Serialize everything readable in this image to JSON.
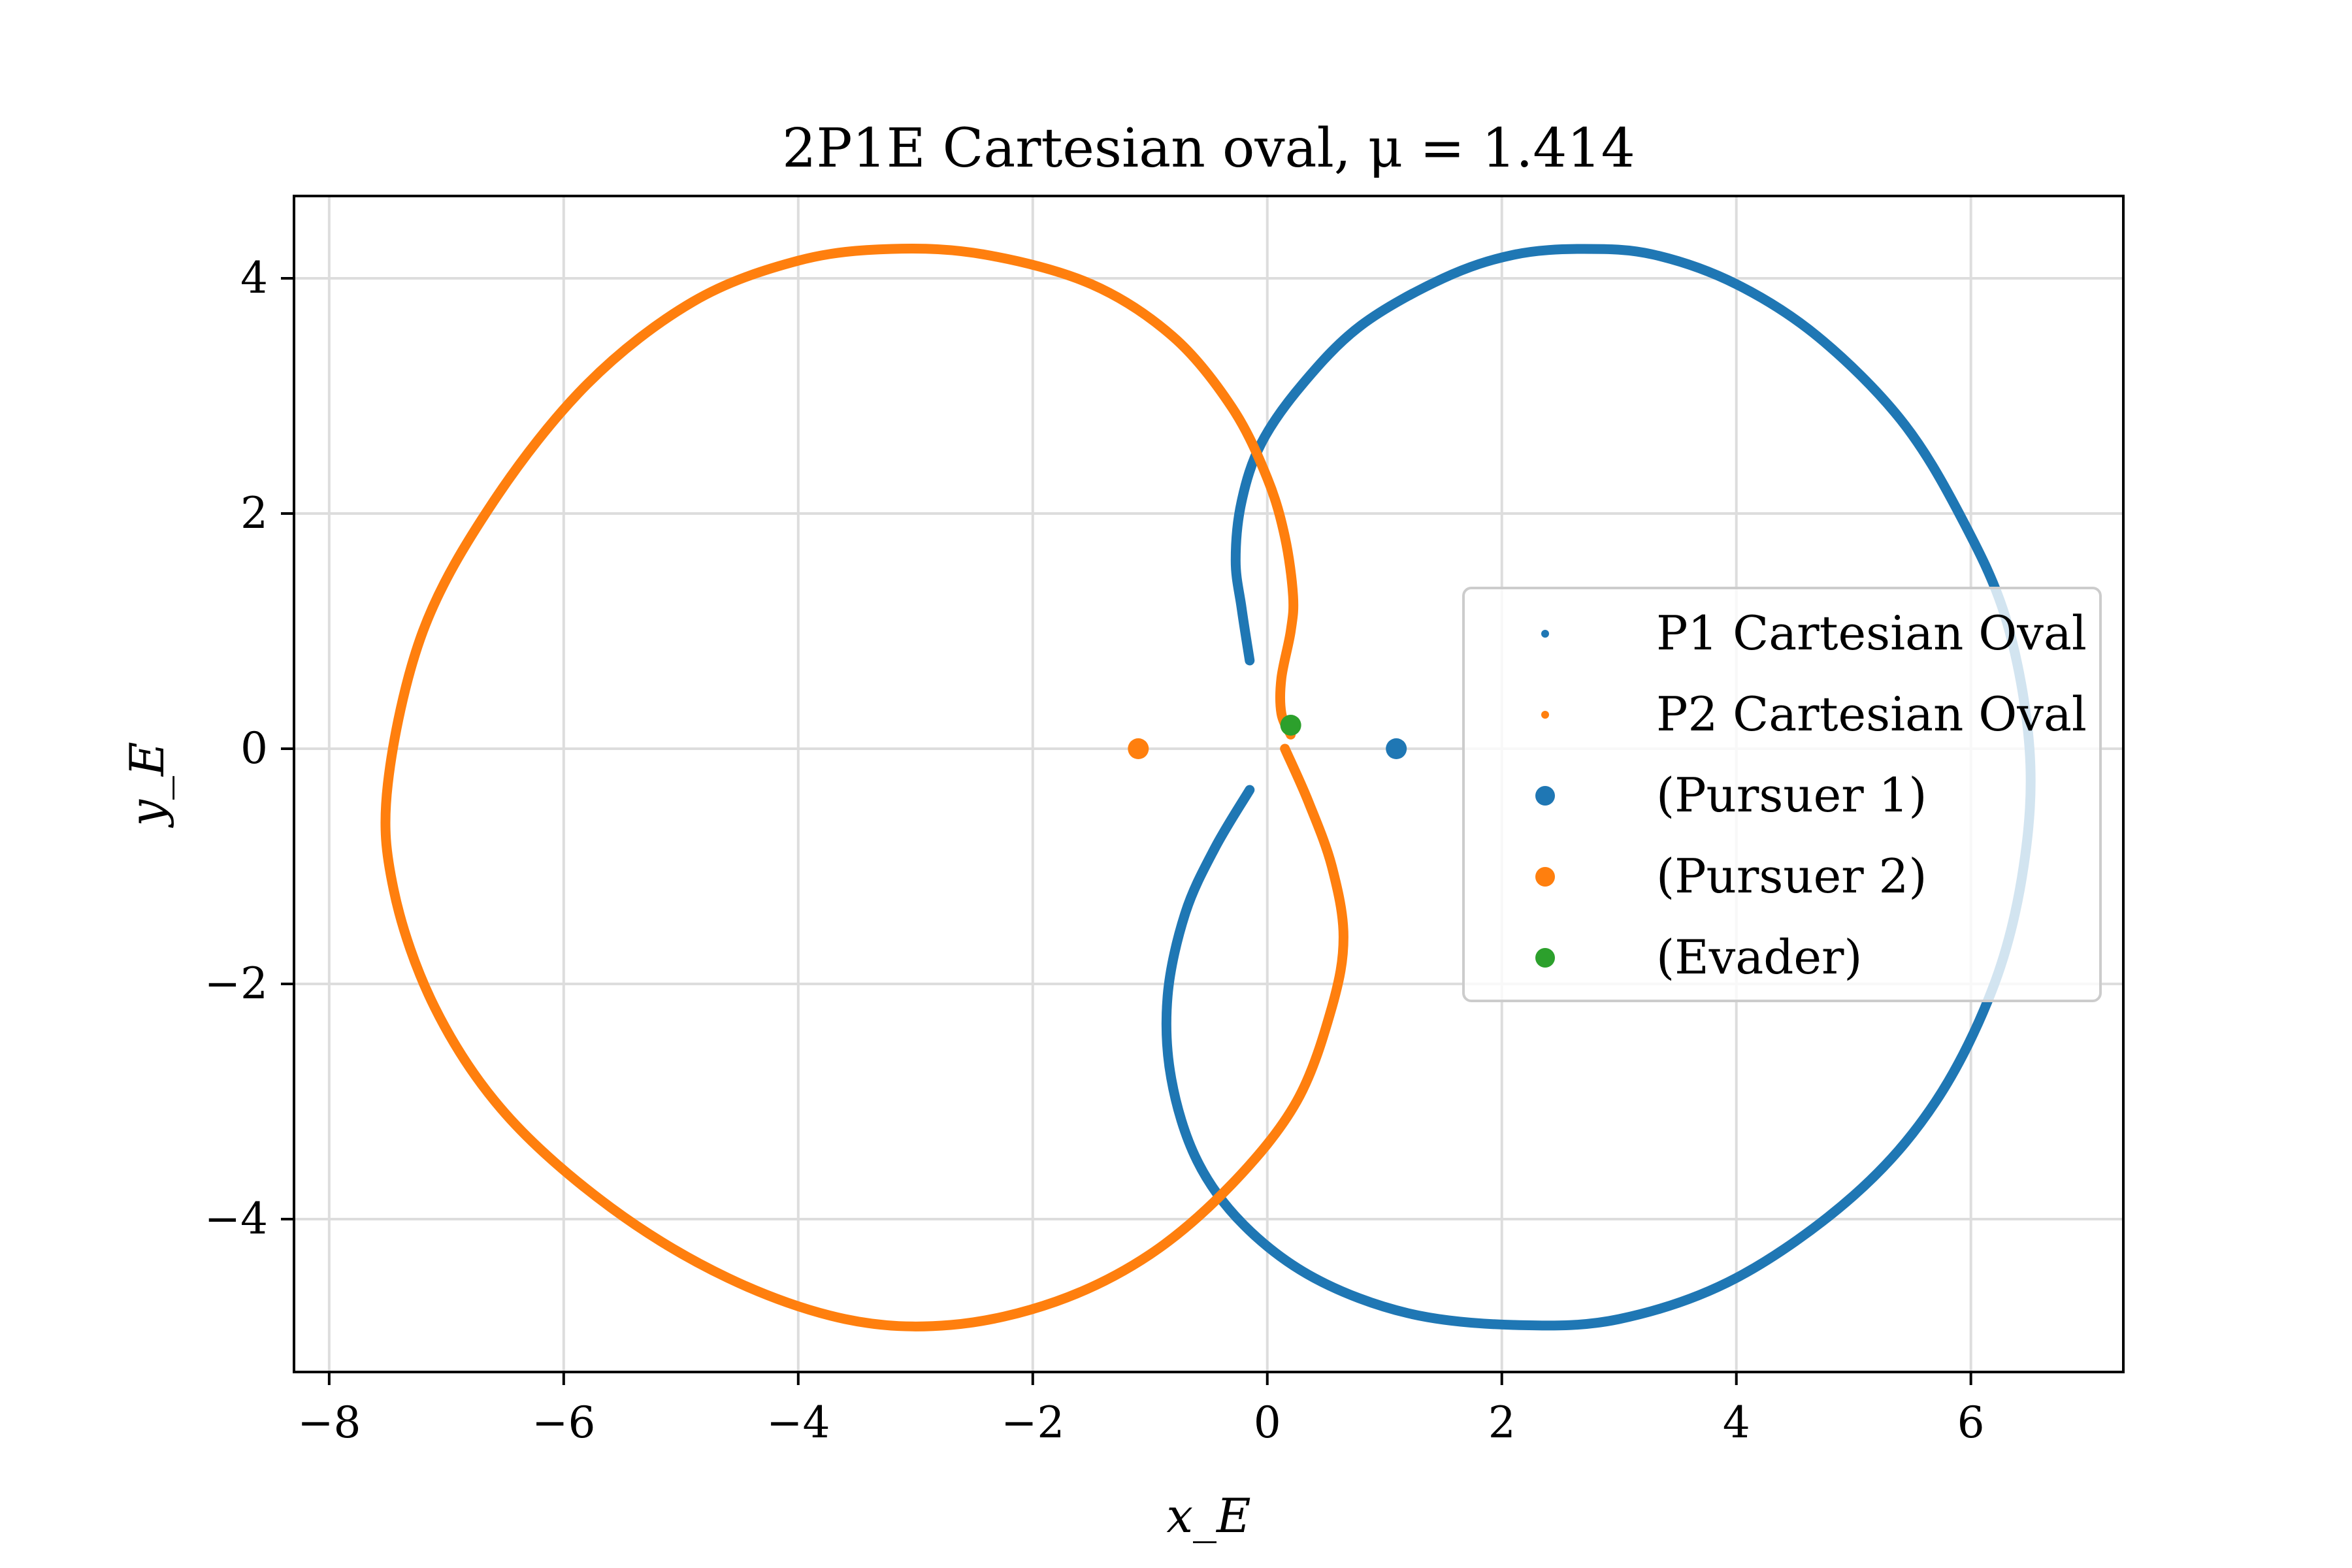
{
  "chart_data": {
    "type": "scatter",
    "title": "2P1E Cartesian oval, μ = 1.414",
    "xlabel": "x_E",
    "ylabel": "y_E",
    "xlim": [
      -8.3,
      7.3
    ],
    "ylim": [
      -5.3,
      4.7
    ],
    "grid": true,
    "legend_position": "right",
    "x_ticks": [
      -8,
      -6,
      -4,
      -2,
      0,
      2,
      4,
      6
    ],
    "y_ticks": [
      -4,
      -2,
      0,
      2,
      4
    ],
    "colors": {
      "p1": "#1f77b4",
      "p2": "#ff7f0e",
      "evader": "#2ca02c",
      "grid": "#dddddd"
    },
    "mu": 1.414,
    "series": [
      {
        "name": "P1 Cartesian Oval",
        "kind": "curve",
        "color": "#1f77b4",
        "points": [
          [
            -0.15,
            0.75
          ],
          [
            -0.22,
            1.2
          ],
          [
            -0.27,
            1.6
          ],
          [
            -0.22,
            2.1
          ],
          [
            -0.05,
            2.6
          ],
          [
            0.3,
            3.1
          ],
          [
            0.8,
            3.6
          ],
          [
            1.5,
            4.0
          ],
          [
            2.1,
            4.2
          ],
          [
            2.7,
            4.25
          ],
          [
            3.3,
            4.2
          ],
          [
            4.0,
            3.95
          ],
          [
            4.7,
            3.5
          ],
          [
            5.4,
            2.8
          ],
          [
            5.9,
            2.0
          ],
          [
            6.3,
            1.1
          ],
          [
            6.5,
            0.0
          ],
          [
            6.45,
            -1.0
          ],
          [
            6.2,
            -2.0
          ],
          [
            5.7,
            -3.0
          ],
          [
            5.0,
            -3.8
          ],
          [
            4.0,
            -4.5
          ],
          [
            3.0,
            -4.85
          ],
          [
            2.1,
            -4.9
          ],
          [
            1.2,
            -4.8
          ],
          [
            0.4,
            -4.5
          ],
          [
            -0.2,
            -4.05
          ],
          [
            -0.6,
            -3.5
          ],
          [
            -0.82,
            -2.8
          ],
          [
            -0.85,
            -2.1
          ],
          [
            -0.7,
            -1.4
          ],
          [
            -0.45,
            -0.85
          ],
          [
            -0.15,
            -0.35
          ]
        ]
      },
      {
        "name": "P2 Cartesian Oval",
        "kind": "curve",
        "color": "#ff7f0e",
        "points": [
          [
            0.2,
            0.12
          ],
          [
            0.12,
            0.3
          ],
          [
            0.12,
            0.6
          ],
          [
            0.2,
            1.0
          ],
          [
            0.22,
            1.3
          ],
          [
            0.15,
            1.8
          ],
          [
            0.0,
            2.3
          ],
          [
            -0.3,
            2.9
          ],
          [
            -0.8,
            3.5
          ],
          [
            -1.5,
            3.95
          ],
          [
            -2.4,
            4.2
          ],
          [
            -3.2,
            4.25
          ],
          [
            -4.0,
            4.15
          ],
          [
            -4.9,
            3.8
          ],
          [
            -5.8,
            3.1
          ],
          [
            -6.6,
            2.1
          ],
          [
            -7.2,
            1.0
          ],
          [
            -7.5,
            -0.3
          ],
          [
            -7.45,
            -1.2
          ],
          [
            -7.1,
            -2.2
          ],
          [
            -6.5,
            -3.1
          ],
          [
            -5.6,
            -3.9
          ],
          [
            -4.6,
            -4.5
          ],
          [
            -3.6,
            -4.85
          ],
          [
            -2.7,
            -4.9
          ],
          [
            -1.8,
            -4.7
          ],
          [
            -1.0,
            -4.3
          ],
          [
            -0.3,
            -3.7
          ],
          [
            0.25,
            -3.0
          ],
          [
            0.55,
            -2.2
          ],
          [
            0.65,
            -1.6
          ],
          [
            0.55,
            -1.0
          ],
          [
            0.35,
            -0.45
          ],
          [
            0.15,
            0.0
          ]
        ]
      },
      {
        "name": "(Pursuer 1)",
        "kind": "point",
        "color": "#1f77b4",
        "x": 1.1,
        "y": 0.0
      },
      {
        "name": "(Pursuer 2)",
        "kind": "point",
        "color": "#ff7f0e",
        "x": -1.1,
        "y": 0.0
      },
      {
        "name": "(Evader)",
        "kind": "point",
        "color": "#2ca02c",
        "x": 0.2,
        "y": 0.2
      }
    ]
  }
}
